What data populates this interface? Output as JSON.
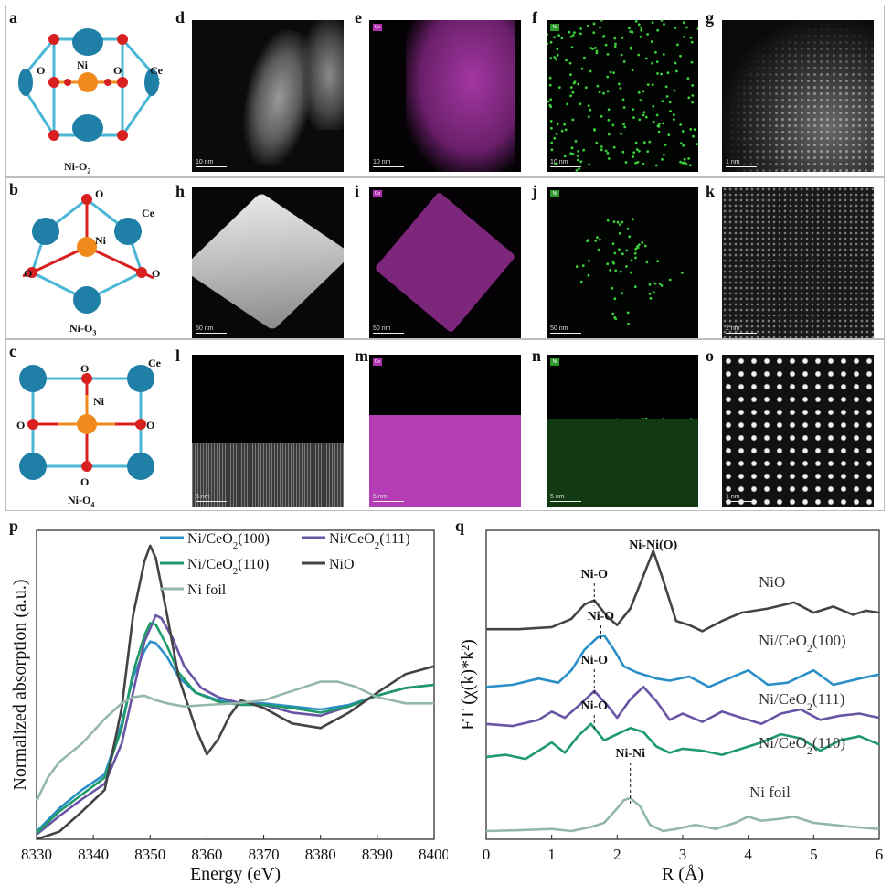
{
  "panels_top": {
    "labels": [
      "a",
      "b",
      "c",
      "d",
      "e",
      "f",
      "g",
      "h",
      "i",
      "j",
      "k",
      "l",
      "m",
      "n",
      "o"
    ],
    "structures": [
      {
        "name_base": "Ni-O",
        "name_sub": "2",
        "atoms": {
          "ni": "Ni",
          "o_left": "O",
          "o_right": "O",
          "ce": "Ce"
        }
      },
      {
        "name_base": "Ni-O",
        "name_sub": "3",
        "atoms": {
          "ni": "Ni",
          "o_top": "O",
          "o_left": "O",
          "o_right": "O",
          "ce": "Ce"
        }
      },
      {
        "name_base": "Ni-O",
        "name_sub": "4",
        "atoms": {
          "ni": "Ni",
          "o_top": "O",
          "o_left": "O",
          "o_right": "O",
          "o_bottom": "O",
          "ce": "Ce"
        }
      }
    ],
    "scale_bars": {
      "d": "10 nm",
      "e": "10 nm",
      "f": "10 nm",
      "g": "1 nm",
      "h": "50 nm",
      "i": "50 nm",
      "j": "50 nm",
      "k": "2 nm",
      "l": "5 nm",
      "m": "5 nm",
      "n": "5 nm",
      "o": "1 nm"
    },
    "element_tags": {
      "ce": "Ce",
      "ni": "Ni"
    }
  },
  "colors": {
    "ce_atom": "#1f7fa6",
    "ni_atom": "#f08a1c",
    "o_atom": "#d92020",
    "bond_blue": "#49b6d6",
    "bond_red": "#d92020",
    "ce_map": "#c23bc2",
    "ni_map": "#3bd13b"
  },
  "chart_p": {
    "panel_label": "p",
    "xlabel": "Energy (eV)",
    "ylabel": "Normalized absorption (a.u.)",
    "x_ticks": [
      "8330",
      "8340",
      "8350",
      "8360",
      "8370",
      "8380",
      "8390",
      "8400"
    ],
    "legend": [
      "Ni/CeO2(100)",
      "Ni/CeO2(111)",
      "Ni/CeO2(110)",
      "NiO",
      "Ni foil"
    ]
  },
  "chart_q": {
    "panel_label": "q",
    "xlabel": "R (Å)",
    "ylabel": "FT (χ(k)*k²)",
    "x_ticks": [
      "0",
      "1",
      "2",
      "3",
      "4",
      "5",
      "6"
    ],
    "curve_labels": [
      "NiO",
      "Ni/CeO2(100)",
      "Ni/CeO2(111)",
      "Ni/CeO2(110)",
      "Ni foil"
    ],
    "peak_labels": [
      "Ni-O",
      "Ni-Ni(O)",
      "Ni-O",
      "Ni-O",
      "Ni-O",
      "Ni-Ni"
    ]
  },
  "chart_data": [
    {
      "type": "line",
      "title": "",
      "xlabel": "Energy (eV)",
      "ylabel": "Normalized absorption (a.u.)",
      "xlim": [
        8330,
        8400
      ],
      "series": [
        {
          "name": "Ni/CeO2(100)",
          "color": "#2b8fc7",
          "x": [
            8330,
            8334,
            8338,
            8342,
            8345,
            8347,
            8349,
            8350,
            8351,
            8353,
            8355,
            8358,
            8362,
            8366,
            8370,
            8375,
            8380,
            8385,
            8390,
            8395,
            8400
          ],
          "y": [
            0.05,
            0.2,
            0.32,
            0.42,
            0.75,
            1.05,
            1.22,
            1.28,
            1.27,
            1.18,
            1.05,
            0.95,
            0.9,
            0.88,
            0.88,
            0.86,
            0.84,
            0.87,
            0.93,
            0.98,
            1.0
          ]
        },
        {
          "name": "Ni/CeO2(111)",
          "color": "#6a55a4",
          "x": [
            8330,
            8334,
            8338,
            8342,
            8345,
            8347,
            8349,
            8351,
            8352,
            8354,
            8356,
            8359,
            8362,
            8366,
            8370,
            8375,
            8380,
            8385,
            8390,
            8395,
            8400
          ],
          "y": [
            0.03,
            0.15,
            0.26,
            0.36,
            0.62,
            0.95,
            1.28,
            1.45,
            1.43,
            1.3,
            1.12,
            0.98,
            0.92,
            0.88,
            0.87,
            0.82,
            0.8,
            0.86,
            0.93,
            0.98,
            1.0
          ]
        },
        {
          "name": "Ni/CeO2(110)",
          "color": "#1f9a6a",
          "x": [
            8330,
            8334,
            8338,
            8342,
            8345,
            8347,
            8349,
            8350,
            8351,
            8353,
            8355,
            8358,
            8362,
            8366,
            8370,
            8375,
            8380,
            8385,
            8390,
            8395,
            8400
          ],
          "y": [
            0.04,
            0.18,
            0.29,
            0.4,
            0.72,
            1.08,
            1.32,
            1.4,
            1.39,
            1.25,
            1.08,
            0.95,
            0.89,
            0.87,
            0.87,
            0.85,
            0.82,
            0.86,
            0.93,
            0.98,
            1.0
          ]
        },
        {
          "name": "NiO",
          "color": "#444444",
          "x": [
            8330,
            8334,
            8338,
            8342,
            8345,
            8347,
            8349,
            8350,
            8351,
            8353,
            8355,
            8358,
            8360,
            8362,
            8364,
            8366,
            8370,
            8375,
            8380,
            8385,
            8390,
            8395,
            8400
          ],
          "y": [
            0.0,
            0.05,
            0.18,
            0.32,
            0.85,
            1.45,
            1.8,
            1.9,
            1.82,
            1.45,
            1.05,
            0.72,
            0.55,
            0.65,
            0.8,
            0.9,
            0.85,
            0.75,
            0.72,
            0.82,
            0.95,
            1.07,
            1.12
          ]
        },
        {
          "name": "Ni foil",
          "color": "#93b7ac",
          "x": [
            8330,
            8332,
            8334,
            8338,
            8342,
            8345,
            8347,
            8349,
            8351,
            8353,
            8356,
            8360,
            8365,
            8370,
            8375,
            8380,
            8383,
            8386,
            8390,
            8395,
            8400
          ],
          "y": [
            0.25,
            0.4,
            0.5,
            0.62,
            0.78,
            0.88,
            0.92,
            0.93,
            0.9,
            0.88,
            0.86,
            0.87,
            0.88,
            0.9,
            0.96,
            1.02,
            1.02,
            0.99,
            0.92,
            0.88,
            0.88
          ]
        }
      ]
    },
    {
      "type": "line",
      "title": "",
      "xlabel": "R (Å)",
      "ylabel": "FT (χ(k)*k²)",
      "xlim": [
        0,
        6
      ],
      "series": [
        {
          "name": "NiO",
          "color": "#444444",
          "x": [
            0,
            0.5,
            1.0,
            1.3,
            1.5,
            1.65,
            1.85,
            2.0,
            2.2,
            2.4,
            2.55,
            2.7,
            2.9,
            3.1,
            3.3,
            3.6,
            3.9,
            4.3,
            4.7,
            5.0,
            5.3,
            5.6,
            5.8,
            6.0
          ],
          "y": [
            5.9,
            5.9,
            5.95,
            6.15,
            6.5,
            6.6,
            6.2,
            6.0,
            6.4,
            7.2,
            7.8,
            7.1,
            6.1,
            6.0,
            5.85,
            6.1,
            6.3,
            6.4,
            6.55,
            6.3,
            6.45,
            6.25,
            6.35,
            6.3
          ]
        },
        {
          "name": "Ni/CeO2(100)",
          "color": "#2b8fc7",
          "x": [
            0,
            0.4,
            0.8,
            1.1,
            1.3,
            1.5,
            1.7,
            1.8,
            1.95,
            2.1,
            2.3,
            2.6,
            2.8,
            3.1,
            3.4,
            3.7,
            4.0,
            4.3,
            4.6,
            5.0,
            5.3,
            5.7,
            6.0
          ],
          "y": [
            4.5,
            4.55,
            4.7,
            4.6,
            4.9,
            5.4,
            5.7,
            5.75,
            5.4,
            5.0,
            4.85,
            4.7,
            4.65,
            4.75,
            4.5,
            4.7,
            4.9,
            4.55,
            4.6,
            4.9,
            4.55,
            4.7,
            4.8
          ]
        },
        {
          "name": "Ni/CeO2(111)",
          "color": "#6a55a4",
          "x": [
            0,
            0.4,
            0.8,
            1.0,
            1.2,
            1.45,
            1.65,
            1.85,
            2.0,
            2.2,
            2.4,
            2.6,
            2.8,
            3.0,
            3.3,
            3.6,
            3.9,
            4.2,
            4.5,
            4.8,
            5.1,
            5.4,
            5.7,
            6.0
          ],
          "y": [
            3.6,
            3.55,
            3.7,
            3.9,
            3.75,
            4.1,
            4.4,
            4.05,
            3.75,
            4.2,
            4.5,
            4.15,
            3.7,
            3.85,
            3.65,
            3.9,
            3.75,
            3.6,
            3.85,
            3.95,
            3.7,
            3.8,
            3.85,
            3.75
          ]
        },
        {
          "name": "Ni/CeO2(110)",
          "color": "#1f9a6a",
          "x": [
            0,
            0.3,
            0.6,
            0.8,
            1.0,
            1.2,
            1.4,
            1.6,
            1.8,
            2.0,
            2.2,
            2.4,
            2.6,
            2.8,
            3.0,
            3.3,
            3.6,
            3.9,
            4.2,
            4.5,
            4.8,
            5.1,
            5.4,
            5.7,
            6.0
          ],
          "y": [
            2.8,
            2.85,
            2.75,
            2.95,
            3.15,
            2.9,
            3.3,
            3.6,
            3.2,
            3.35,
            3.5,
            3.4,
            3.05,
            2.9,
            3.0,
            2.95,
            2.85,
            3.0,
            3.15,
            3.35,
            3.25,
            2.95,
            3.2,
            3.3,
            3.1
          ]
        },
        {
          "name": "Ni foil",
          "color": "#93b7ac",
          "x": [
            0,
            0.5,
            1.0,
            1.3,
            1.6,
            1.8,
            2.0,
            2.1,
            2.2,
            2.35,
            2.5,
            2.7,
            2.9,
            3.2,
            3.5,
            3.8,
            4.0,
            4.2,
            4.5,
            4.7,
            5.0,
            5.3,
            5.6,
            6.0
          ],
          "y": [
            1.0,
            1.02,
            1.05,
            1.0,
            1.1,
            1.2,
            1.55,
            1.75,
            1.8,
            1.6,
            1.15,
            1.0,
            1.05,
            1.15,
            1.05,
            1.2,
            1.35,
            1.25,
            1.3,
            1.35,
            1.2,
            1.15,
            1.1,
            1.05
          ]
        }
      ]
    }
  ]
}
